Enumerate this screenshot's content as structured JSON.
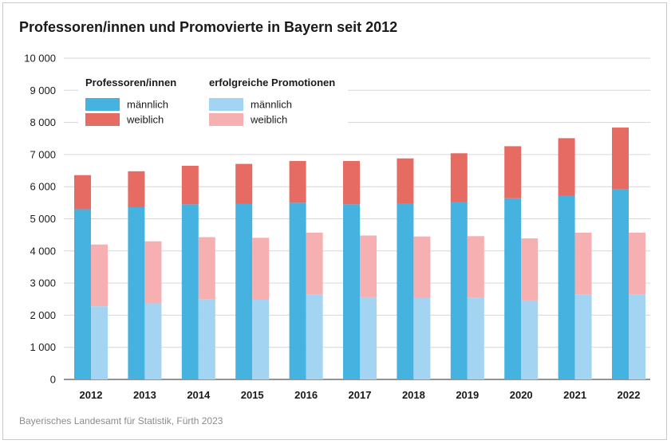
{
  "chart_data": {
    "type": "bar",
    "title": "Professoren/innen und Promovierte in Bayern seit 2012",
    "source": "Bayerisches Landesamt für Statistik, Fürth 2023",
    "categories": [
      "2012",
      "2013",
      "2014",
      "2015",
      "2016",
      "2017",
      "2018",
      "2019",
      "2020",
      "2021",
      "2022"
    ],
    "ylim": [
      0,
      10000
    ],
    "yticks": [
      {
        "value": 0,
        "label": "0"
      },
      {
        "value": 1000,
        "label": "1 000"
      },
      {
        "value": 2000,
        "label": "2 000"
      },
      {
        "value": 3000,
        "label": "3 000"
      },
      {
        "value": 4000,
        "label": "4 000"
      },
      {
        "value": 5000,
        "label": "5 000"
      },
      {
        "value": 6000,
        "label": "6 000"
      },
      {
        "value": 7000,
        "label": "7 000"
      },
      {
        "value": 8000,
        "label": "8 000"
      },
      {
        "value": 9000,
        "label": "9 000"
      },
      {
        "value": 10000,
        "label": "10 000"
      }
    ],
    "grid": true,
    "legend_position": "top-left",
    "groups": [
      {
        "name": "Professoren/innen",
        "series": [
          {
            "name": "männlich",
            "color": "#45b2e0",
            "values": [
              5300,
              5360,
              5450,
              5460,
              5500,
              5450,
              5470,
              5520,
              5640,
              5720,
              5910
            ]
          },
          {
            "name": "weiblich",
            "color": "#e66b63",
            "values": [
              1060,
              1120,
              1200,
              1250,
              1300,
              1350,
              1410,
              1520,
              1620,
              1790,
              1930
            ]
          }
        ]
      },
      {
        "name": "erfolgreiche Promotionen",
        "series": [
          {
            "name": "männlich",
            "color": "#a3d4f1",
            "values": [
              2280,
              2370,
              2500,
              2480,
              2650,
              2560,
              2530,
              2540,
              2460,
              2650,
              2650
            ]
          },
          {
            "name": "weiblich",
            "color": "#f6b0b2",
            "values": [
              1920,
              1930,
              1930,
              1930,
              1920,
              1920,
              1920,
              1920,
              1930,
              1920,
              1920
            ]
          }
        ]
      }
    ]
  }
}
